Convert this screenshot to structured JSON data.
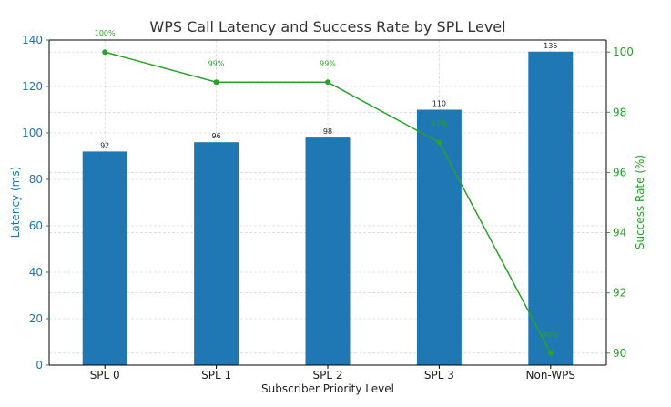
{
  "chart_data": {
    "type": "bar",
    "title": "WPS Call Latency and Success Rate by SPL Level",
    "xlabel": "Subscriber Priority Level",
    "ylabel": "Latency (ms)",
    "y2label": "Success Rate (%)",
    "categories": [
      "SPL 0",
      "SPL 1",
      "SPL 2",
      "SPL 3",
      "Non-WPS"
    ],
    "ylim": [
      0,
      140
    ],
    "y2lim": [
      89.6,
      100.4
    ],
    "yticks": [
      "0",
      "20",
      "40",
      "60",
      "80",
      "100",
      "120",
      "140"
    ],
    "y2ticks": [
      "90",
      "92",
      "94",
      "96",
      "98",
      "100"
    ],
    "grid": true,
    "series": [
      {
        "kind": "bar",
        "axis": "left",
        "values": [
          92,
          96,
          98,
          110,
          135
        ],
        "labels": [
          "92",
          "96",
          "98",
          "110",
          "135"
        ]
      },
      {
        "kind": "line",
        "axis": "right",
        "values": [
          100,
          99,
          99,
          97,
          90
        ],
        "labels": [
          "100%",
          "99%",
          "99%",
          "97%",
          "90%"
        ]
      }
    ],
    "colors": {
      "bar": "#1f77b4",
      "line": "#2ca02c",
      "left_axis": "#1f77b4",
      "right_axis": "#2ca02c",
      "grid": "#cccccc",
      "text": "#222222",
      "title": "#333333"
    }
  }
}
